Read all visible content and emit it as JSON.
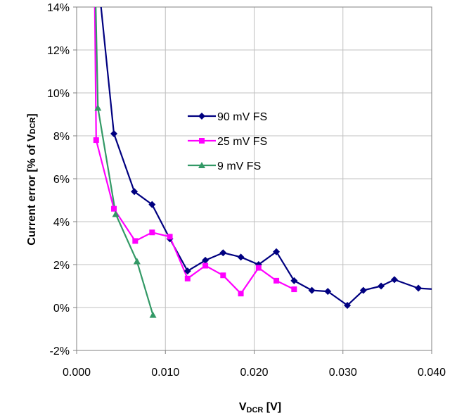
{
  "chart_data": {
    "type": "line",
    "title": "",
    "xlabel": {
      "main": "V",
      "sub": "DCR",
      "rest": " [V]"
    },
    "ylabel": {
      "main": "Current error [% of V",
      "sub": "DCR",
      "rest": "]"
    },
    "xlim": [
      0,
      0.04
    ],
    "ylim": [
      -2,
      14
    ],
    "xticks": [
      {
        "v": 0.0,
        "label": "0.000"
      },
      {
        "v": 0.01,
        "label": "0.010"
      },
      {
        "v": 0.02,
        "label": "0.020"
      },
      {
        "v": 0.03,
        "label": "0.030"
      },
      {
        "v": 0.04,
        "label": "0.040"
      }
    ],
    "yticks": [
      {
        "v": -2,
        "label": "-2%"
      },
      {
        "v": 0,
        "label": "0%"
      },
      {
        "v": 2,
        "label": "2%"
      },
      {
        "v": 4,
        "label": "4%"
      },
      {
        "v": 6,
        "label": "6%"
      },
      {
        "v": 8,
        "label": "8%"
      },
      {
        "v": 10,
        "label": "10%"
      },
      {
        "v": 12,
        "label": "12%"
      },
      {
        "v": 14,
        "label": "14%"
      }
    ],
    "grid": true,
    "legend_position": "center",
    "series": [
      {
        "name": "90 mV FS",
        "color": "#000080",
        "marker": "diamond",
        "points": [
          [
            0.0014,
            20.0
          ],
          [
            0.0025,
            15.0
          ],
          [
            0.0042,
            8.1
          ],
          [
            0.0065,
            5.4
          ],
          [
            0.0085,
            4.8
          ],
          [
            0.0105,
            3.2
          ],
          [
            0.0125,
            1.7
          ],
          [
            0.0145,
            2.2
          ],
          [
            0.0165,
            2.55
          ],
          [
            0.0185,
            2.35
          ],
          [
            0.0205,
            2.0
          ],
          [
            0.0225,
            2.6
          ],
          [
            0.0245,
            1.25
          ],
          [
            0.0265,
            0.8
          ],
          [
            0.0283,
            0.75
          ],
          [
            0.0305,
            0.1
          ],
          [
            0.0323,
            0.8
          ],
          [
            0.0343,
            1.0
          ],
          [
            0.0358,
            1.3
          ],
          [
            0.0385,
            0.9
          ],
          [
            0.0405,
            0.85
          ]
        ]
      },
      {
        "name": "25 mV FS",
        "color": "#FF00FF",
        "marker": "square",
        "points": [
          [
            0.0019,
            20.0
          ],
          [
            0.0022,
            7.8
          ],
          [
            0.0042,
            4.6
          ],
          [
            0.0066,
            3.1
          ],
          [
            0.0085,
            3.5
          ],
          [
            0.0105,
            3.3
          ],
          [
            0.0125,
            1.35
          ],
          [
            0.0145,
            1.95
          ],
          [
            0.0165,
            1.5
          ],
          [
            0.0185,
            0.65
          ],
          [
            0.0205,
            1.85
          ],
          [
            0.0225,
            1.25
          ],
          [
            0.0245,
            0.85
          ]
        ]
      },
      {
        "name": "9 mV FS",
        "color": "#339966",
        "marker": "triangle",
        "points": [
          [
            0.0021,
            15.0
          ],
          [
            0.0024,
            9.3
          ],
          [
            0.0044,
            4.35
          ],
          [
            0.0068,
            2.15
          ],
          [
            0.0086,
            -0.35
          ]
        ]
      }
    ]
  }
}
